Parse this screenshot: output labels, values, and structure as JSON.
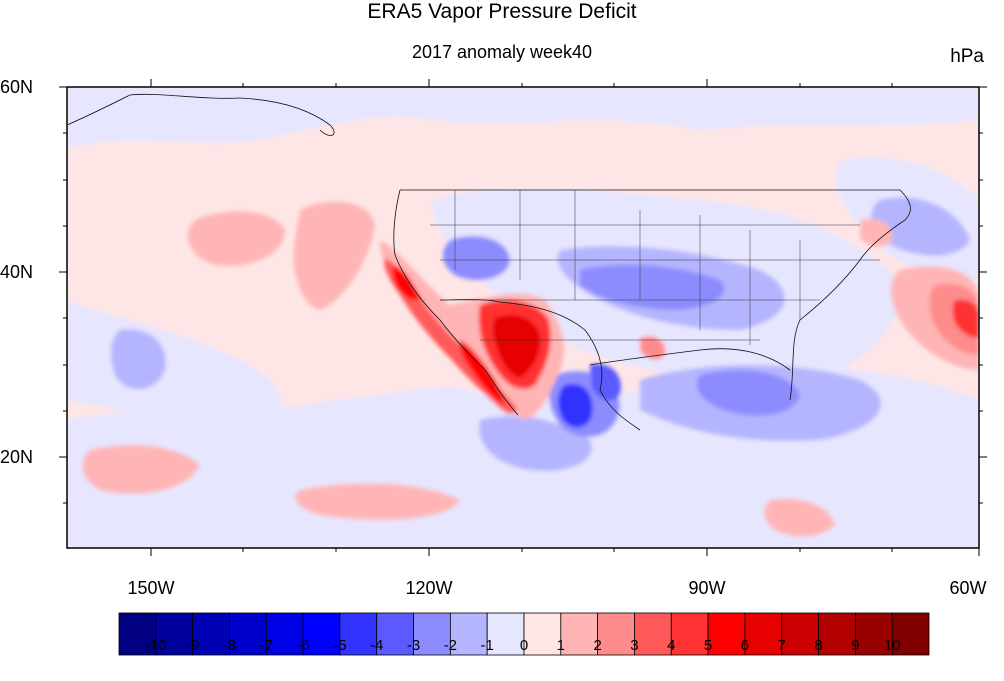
{
  "title": "ERA5 Vapor Pressure Deficit",
  "subtitle": "2017 anomaly week40",
  "units": "hPa",
  "map": {
    "lat_labels": [
      {
        "value": 60,
        "label": "60N"
      },
      {
        "value": 40,
        "label": "40N"
      },
      {
        "value": 20,
        "label": "20N"
      }
    ],
    "lon_labels": [
      {
        "value": -150,
        "label": "150W"
      },
      {
        "value": -120,
        "label": "120W"
      },
      {
        "value": -90,
        "label": "90W"
      },
      {
        "value": -60,
        "label": "60W"
      }
    ],
    "lon_range": [
      -159,
      -60
    ],
    "lat_range": [
      10,
      60
    ]
  },
  "colorbar": {
    "labels": [
      "-10",
      "-9",
      "-8",
      "-7",
      "-6",
      "-5",
      "-4",
      "-3",
      "-2",
      "-1",
      "0",
      "1",
      "2",
      "3",
      "4",
      "5",
      "6",
      "7",
      "8",
      "9",
      "10"
    ],
    "colors": [
      "#000080",
      "#00009e",
      "#0000b5",
      "#0000cc",
      "#0000e6",
      "#0000ff",
      "#3333ff",
      "#5a5aff",
      "#8c8cff",
      "#b5b5ff",
      "#e6e6ff",
      "#ffe6e6",
      "#ffb5b5",
      "#ff8c8c",
      "#ff5a5a",
      "#ff3333",
      "#ff0000",
      "#e60000",
      "#cc0000",
      "#b30000",
      "#990000",
      "#800000"
    ]
  }
}
